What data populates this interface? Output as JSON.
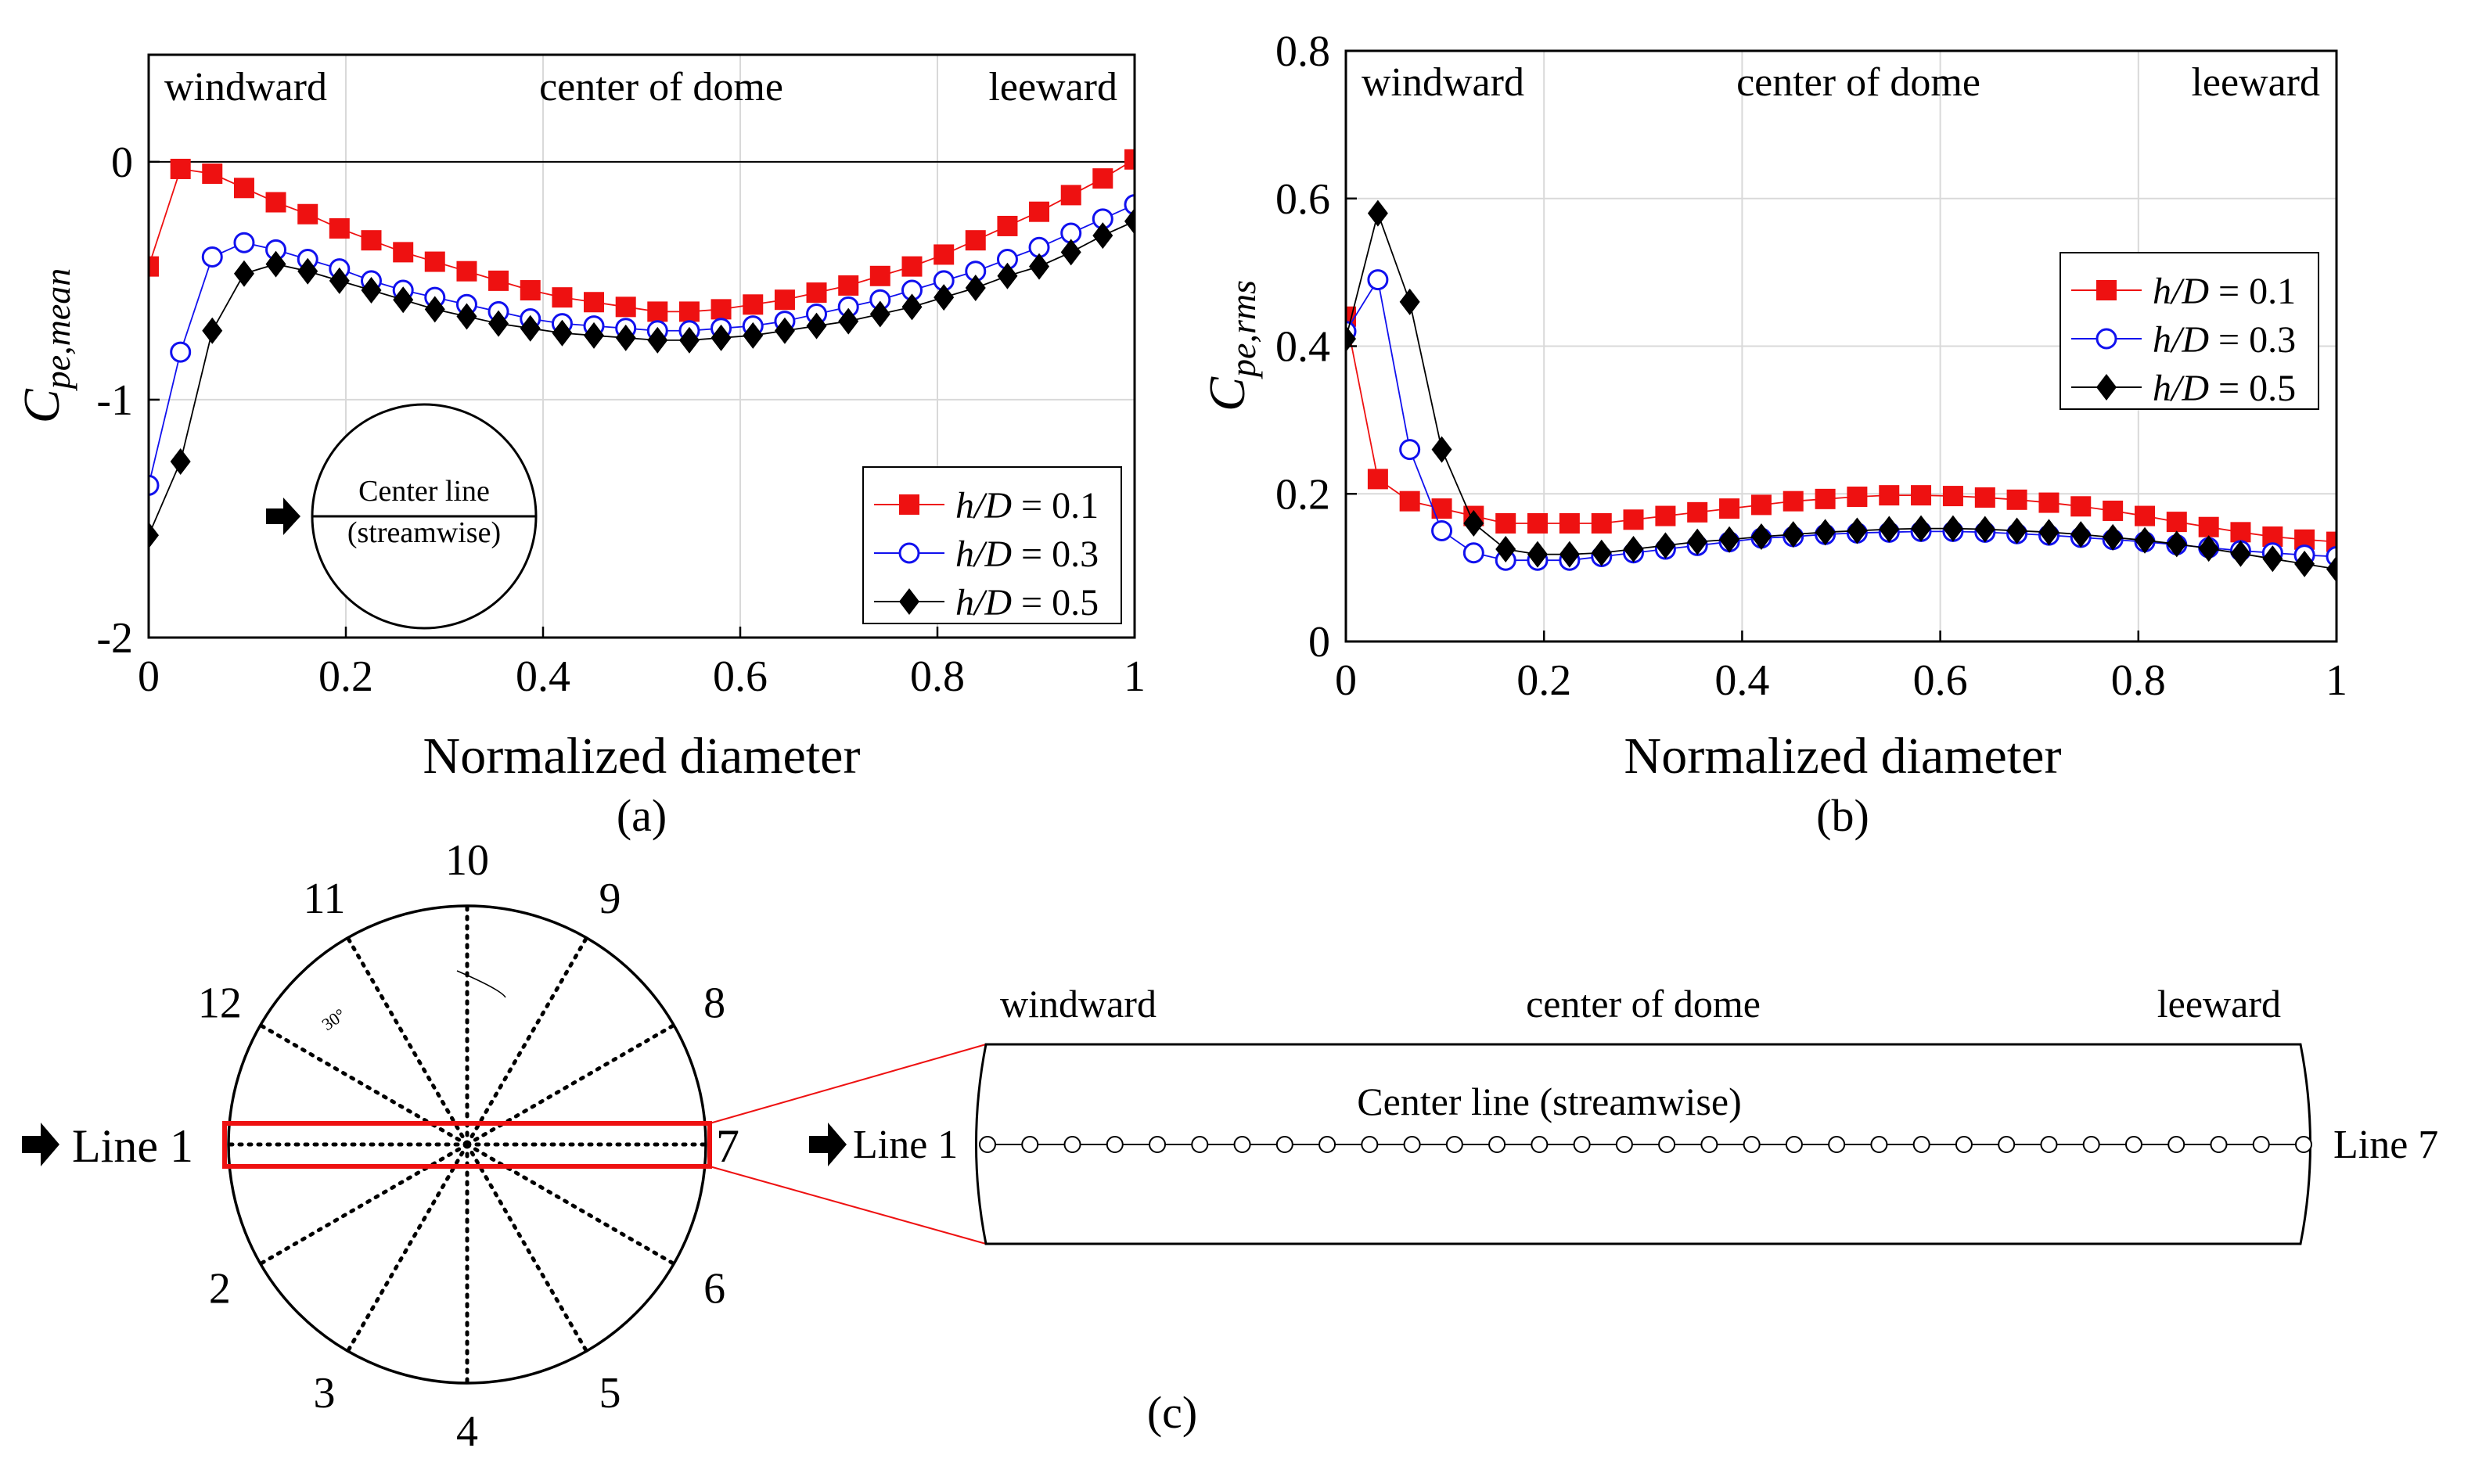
{
  "colors": {
    "series1": "#ee1111",
    "series2": "#1111ee",
    "series3": "#000000",
    "grid": "#d9d9d9",
    "highlight": "#ee1111"
  },
  "chart_data": [
    {
      "id": "a",
      "type": "scatter",
      "panel_label": "(a)",
      "xlabel": "Normalized diameter",
      "ylabel_main": "C",
      "ylabel_sub": "pe,mean",
      "xlim": [
        0,
        1
      ],
      "ylim": [
        -2,
        0.45
      ],
      "xticks": [
        0,
        0.2,
        0.4,
        0.6,
        0.8,
        1
      ],
      "xtick_labels": [
        "0",
        "0.2",
        "0.4",
        "0.6",
        "0.8",
        "1"
      ],
      "yticks": [
        -2,
        -1,
        0
      ],
      "ytick_labels": [
        "-2",
        "-1",
        "0"
      ],
      "zero_line": true,
      "grid": true,
      "annotations": [
        "windward",
        "center of dome",
        "leeward"
      ],
      "legend_position": "bottom-right",
      "inset": {
        "line1": "Center line",
        "line2": "(streamwise)"
      },
      "x": [
        0,
        0.0323,
        0.0645,
        0.0968,
        0.129,
        0.1613,
        0.1935,
        0.2258,
        0.2581,
        0.2903,
        0.3226,
        0.3548,
        0.3871,
        0.4194,
        0.4516,
        0.4839,
        0.5161,
        0.5484,
        0.5806,
        0.6129,
        0.6452,
        0.6774,
        0.7097,
        0.7419,
        0.7742,
        0.8065,
        0.8387,
        0.871,
        0.9032,
        0.9355,
        0.9677,
        1
      ],
      "series": [
        {
          "name_var": "h/D",
          "name_val": " = 0.1",
          "marker": "square",
          "values": [
            -0.44,
            -0.03,
            -0.05,
            -0.11,
            -0.17,
            -0.22,
            -0.28,
            -0.33,
            -0.38,
            -0.42,
            -0.46,
            -0.5,
            -0.54,
            -0.57,
            -0.59,
            -0.61,
            -0.63,
            -0.63,
            -0.62,
            -0.6,
            -0.58,
            -0.55,
            -0.52,
            -0.48,
            -0.44,
            -0.39,
            -0.33,
            -0.27,
            -0.21,
            -0.14,
            -0.07,
            0.01
          ]
        },
        {
          "name_var": "h/D",
          "name_val": " = 0.3",
          "marker": "circle",
          "values": [
            -1.36,
            -0.8,
            -0.4,
            -0.34,
            -0.37,
            -0.41,
            -0.45,
            -0.5,
            -0.54,
            -0.57,
            -0.6,
            -0.63,
            -0.66,
            -0.68,
            -0.69,
            -0.7,
            -0.71,
            -0.71,
            -0.7,
            -0.69,
            -0.67,
            -0.64,
            -0.61,
            -0.58,
            -0.54,
            -0.5,
            -0.46,
            -0.41,
            -0.36,
            -0.3,
            -0.24,
            -0.18
          ]
        },
        {
          "name_var": "h/D",
          "name_val": " = 0.5",
          "marker": "diamond",
          "values": [
            -1.57,
            -1.26,
            -0.71,
            -0.47,
            -0.43,
            -0.46,
            -0.5,
            -0.54,
            -0.58,
            -0.62,
            -0.65,
            -0.68,
            -0.7,
            -0.72,
            -0.73,
            -0.74,
            -0.75,
            -0.75,
            -0.74,
            -0.73,
            -0.71,
            -0.69,
            -0.67,
            -0.64,
            -0.61,
            -0.57,
            -0.53,
            -0.48,
            -0.44,
            -0.38,
            -0.31,
            -0.25
          ]
        }
      ]
    },
    {
      "id": "b",
      "type": "scatter",
      "panel_label": "(b)",
      "xlabel": "Normalized diameter",
      "ylabel_main": "C",
      "ylabel_sub": "pe,rms",
      "xlim": [
        0,
        1
      ],
      "ylim": [
        0,
        0.8
      ],
      "xticks": [
        0,
        0.2,
        0.4,
        0.6,
        0.8,
        1
      ],
      "xtick_labels": [
        "0",
        "0.2",
        "0.4",
        "0.6",
        "0.8",
        "1"
      ],
      "yticks": [
        0,
        0.2,
        0.4,
        0.6,
        0.8
      ],
      "ytick_labels": [
        "0",
        "0.2",
        "0.4",
        "0.6",
        "0.8"
      ],
      "zero_line": false,
      "grid": true,
      "annotations": [
        "windward",
        "center of dome",
        "leeward"
      ],
      "legend_position": "top-right",
      "x": [
        0,
        0.0323,
        0.0645,
        0.0968,
        0.129,
        0.1613,
        0.1935,
        0.2258,
        0.2581,
        0.2903,
        0.3226,
        0.3548,
        0.3871,
        0.4194,
        0.4516,
        0.4839,
        0.5161,
        0.5484,
        0.5806,
        0.6129,
        0.6452,
        0.6774,
        0.7097,
        0.7419,
        0.7742,
        0.8065,
        0.8387,
        0.871,
        0.9032,
        0.9355,
        0.9677,
        1
      ],
      "series": [
        {
          "name_var": "h/D",
          "name_val": " = 0.1",
          "marker": "square",
          "values": [
            0.44,
            0.22,
            0.19,
            0.18,
            0.17,
            0.16,
            0.16,
            0.16,
            0.16,
            0.165,
            0.17,
            0.175,
            0.18,
            0.185,
            0.19,
            0.193,
            0.196,
            0.198,
            0.198,
            0.197,
            0.195,
            0.192,
            0.188,
            0.183,
            0.177,
            0.17,
            0.162,
            0.155,
            0.148,
            0.142,
            0.138,
            0.135
          ]
        },
        {
          "name_var": "h/D",
          "name_val": " = 0.3",
          "marker": "circle",
          "values": [
            0.42,
            0.49,
            0.26,
            0.15,
            0.12,
            0.11,
            0.11,
            0.11,
            0.115,
            0.12,
            0.125,
            0.13,
            0.135,
            0.14,
            0.142,
            0.145,
            0.147,
            0.148,
            0.149,
            0.149,
            0.148,
            0.146,
            0.144,
            0.141,
            0.138,
            0.135,
            0.131,
            0.127,
            0.123,
            0.12,
            0.117,
            0.115
          ]
        },
        {
          "name_var": "h/D",
          "name_val": " = 0.5",
          "marker": "diamond",
          "values": [
            0.41,
            0.58,
            0.46,
            0.26,
            0.16,
            0.125,
            0.118,
            0.118,
            0.12,
            0.125,
            0.13,
            0.135,
            0.138,
            0.142,
            0.145,
            0.148,
            0.15,
            0.152,
            0.153,
            0.153,
            0.152,
            0.15,
            0.148,
            0.145,
            0.141,
            0.137,
            0.132,
            0.126,
            0.119,
            0.112,
            0.105,
            0.098
          ]
        }
      ]
    }
  ],
  "panel_c": {
    "label": "(c)",
    "line_numbers": [
      "1",
      "2",
      "3",
      "4",
      "5",
      "6",
      "7",
      "8",
      "9",
      "10",
      "11",
      "12"
    ],
    "line1_label": "Line 1",
    "line7_label": "Line 7",
    "angle_label": "30°",
    "centerline_label": "Center line (streamwise)",
    "windward": "windward",
    "center": "center of dome",
    "leeward": "leeward",
    "tap_count": 32
  }
}
